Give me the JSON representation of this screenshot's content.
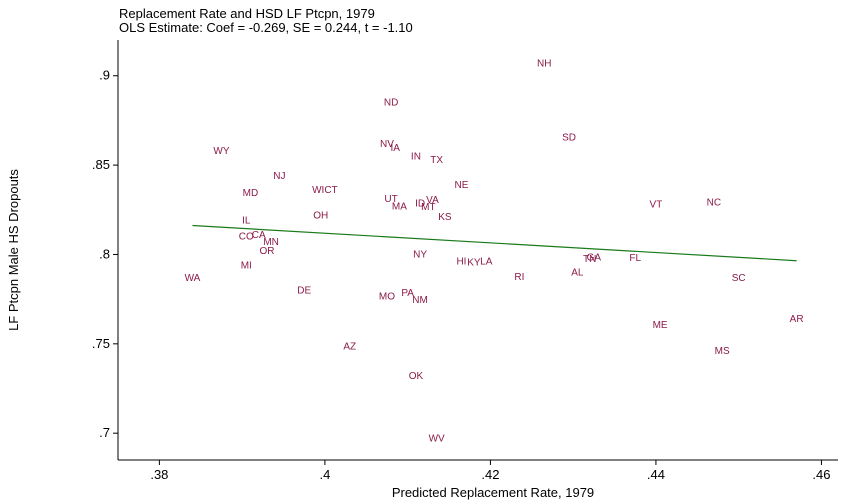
{
  "chart_data": {
    "type": "scatter",
    "title": "Replacement Rate and HSD LF Ptcpn, 1979",
    "subtitle": "OLS Estimate: Coef = -0.269, SE = 0.244, t = -1.10",
    "xlabel": "Predicted Replacement Rate, 1979",
    "ylabel": "LF Ptcpn Male HS Dropouts",
    "xlim": [
      0.375,
      0.462
    ],
    "ylim": [
      0.685,
      0.92
    ],
    "x_ticks": [
      {
        "value": 0.38,
        "label": ".38"
      },
      {
        "value": 0.4,
        "label": ".4"
      },
      {
        "value": 0.42,
        "label": ".42"
      },
      {
        "value": 0.44,
        "label": ".44"
      },
      {
        "value": 0.46,
        "label": ".46"
      }
    ],
    "y_ticks": [
      {
        "value": 0.7,
        "label": ".7"
      },
      {
        "value": 0.75,
        "label": ".75"
      },
      {
        "value": 0.8,
        "label": ".8"
      },
      {
        "value": 0.85,
        "label": ".85"
      },
      {
        "value": 0.9,
        "label": ".9"
      }
    ],
    "grid": false,
    "marker_color": "#8b1a4a",
    "fit_color": "#1a7a1a",
    "fit_line": {
      "x": [
        0.384,
        0.457
      ],
      "y": [
        0.8162,
        0.7965
      ]
    },
    "points": [
      {
        "label": "NH",
        "x": 0.4265,
        "y": 0.9075
      },
      {
        "label": "ND",
        "x": 0.408,
        "y": 0.8855
      },
      {
        "label": "SD",
        "x": 0.4295,
        "y": 0.866
      },
      {
        "label": "WY",
        "x": 0.3875,
        "y": 0.8585
      },
      {
        "label": "NV",
        "x": 0.4075,
        "y": 0.8625
      },
      {
        "label": "IA",
        "x": 0.4085,
        "y": 0.86
      },
      {
        "label": "IN",
        "x": 0.411,
        "y": 0.8555
      },
      {
        "label": "TX",
        "x": 0.4135,
        "y": 0.8535
      },
      {
        "label": "NJ",
        "x": 0.3945,
        "y": 0.8445
      },
      {
        "label": "NE",
        "x": 0.4165,
        "y": 0.8395
      },
      {
        "label": "MD",
        "x": 0.391,
        "y": 0.835
      },
      {
        "label": "WICT",
        "x": 0.4,
        "y": 0.8365
      },
      {
        "label": "UT",
        "x": 0.408,
        "y": 0.8315
      },
      {
        "label": "VA",
        "x": 0.413,
        "y": 0.831
      },
      {
        "label": "ID",
        "x": 0.4115,
        "y": 0.829
      },
      {
        "label": "MA",
        "x": 0.409,
        "y": 0.8275
      },
      {
        "label": "MT",
        "x": 0.4125,
        "y": 0.827
      },
      {
        "label": "VT",
        "x": 0.44,
        "y": 0.8285
      },
      {
        "label": "NC",
        "x": 0.447,
        "y": 0.8295
      },
      {
        "label": "OH",
        "x": 0.3995,
        "y": 0.8225
      },
      {
        "label": "KS",
        "x": 0.4145,
        "y": 0.8215
      },
      {
        "label": "IL",
        "x": 0.3905,
        "y": 0.8195
      },
      {
        "label": "CO",
        "x": 0.3905,
        "y": 0.8105
      },
      {
        "label": "CA",
        "x": 0.392,
        "y": 0.8115
      },
      {
        "label": "MN",
        "x": 0.3935,
        "y": 0.8075
      },
      {
        "label": "OR",
        "x": 0.393,
        "y": 0.8025
      },
      {
        "label": "NY",
        "x": 0.4115,
        "y": 0.8005
      },
      {
        "label": "GA",
        "x": 0.4325,
        "y": 0.799
      },
      {
        "label": "TN",
        "x": 0.432,
        "y": 0.798
      },
      {
        "label": "FL",
        "x": 0.4375,
        "y": 0.7985
      },
      {
        "label": "HI",
        "x": 0.4165,
        "y": 0.7965
      },
      {
        "label": "KY",
        "x": 0.418,
        "y": 0.796
      },
      {
        "label": "LA",
        "x": 0.4195,
        "y": 0.7965
      },
      {
        "label": "MI",
        "x": 0.3905,
        "y": 0.7945
      },
      {
        "label": "AL",
        "x": 0.4305,
        "y": 0.7905
      },
      {
        "label": "RI",
        "x": 0.4235,
        "y": 0.788
      },
      {
        "label": "WA",
        "x": 0.384,
        "y": 0.7875
      },
      {
        "label": "SC",
        "x": 0.45,
        "y": 0.7875
      },
      {
        "label": "DE",
        "x": 0.3975,
        "y": 0.7805
      },
      {
        "label": "PA",
        "x": 0.41,
        "y": 0.779
      },
      {
        "label": "MO",
        "x": 0.4075,
        "y": 0.777
      },
      {
        "label": "NM",
        "x": 0.4115,
        "y": 0.775
      },
      {
        "label": "AR",
        "x": 0.457,
        "y": 0.7645
      },
      {
        "label": "ME",
        "x": 0.4405,
        "y": 0.761
      },
      {
        "label": "AZ",
        "x": 0.403,
        "y": 0.749
      },
      {
        "label": "MS",
        "x": 0.448,
        "y": 0.7465
      },
      {
        "label": "OK",
        "x": 0.411,
        "y": 0.7325
      },
      {
        "label": "WV",
        "x": 0.4135,
        "y": 0.6975
      }
    ]
  }
}
